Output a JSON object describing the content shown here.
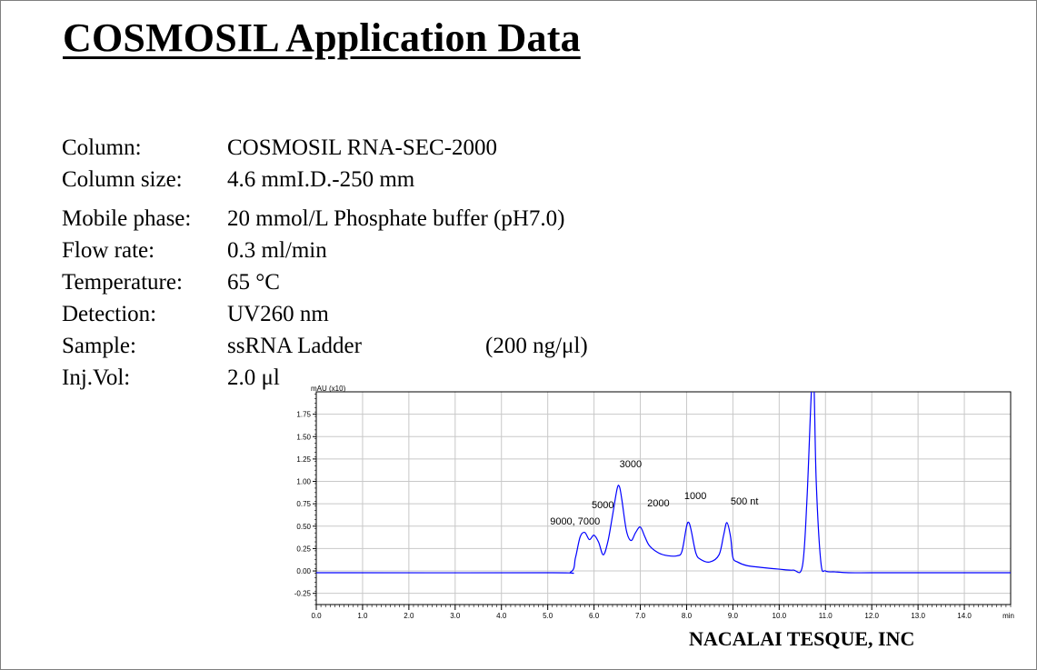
{
  "title": "COSMOSIL Application Data",
  "specs": [
    {
      "label": "Column:",
      "value": "COSMOSIL RNA-SEC-2000"
    },
    {
      "label": "Column size:",
      "value": "4.6 mmI.D.-250 mm"
    },
    {
      "label": "Mobile phase:",
      "value": "20 mmol/L Phosphate buffer (pH7.0)"
    },
    {
      "label": "Flow rate:",
      "value": "0.3 ml/min"
    },
    {
      "label": "Temperature:",
      "value": "65 °C"
    },
    {
      "label": "Detection:",
      "value": "UV260 nm"
    },
    {
      "label": "Sample:",
      "value": "ssRNA Ladder",
      "extra": "(200 ng/μl)"
    },
    {
      "label": "Inj.Vol:",
      "value": "2.0 μl"
    }
  ],
  "footer": "NACALAI TESQUE, INC",
  "chart_data": {
    "type": "line",
    "ylabel": "mAU (x10)",
    "xlabel": "min",
    "xlim": [
      0.0,
      15.0
    ],
    "ylim": [
      -0.375,
      2.0
    ],
    "x_ticks": [
      "0.0",
      "1.0",
      "2.0",
      "3.0",
      "4.0",
      "5.0",
      "6.0",
      "7.0",
      "8.0",
      "9.0",
      "10.0",
      "11.0",
      "12.0",
      "13.0",
      "14.0"
    ],
    "y_ticks": [
      "1.75",
      "1.50",
      "1.25",
      "1.00",
      "0.75",
      "0.50",
      "0.25",
      "0.00",
      "-0.25"
    ],
    "grid": true,
    "line_color": "#0000ff",
    "series": [
      {
        "x": [
          0.0,
          5.0,
          5.5,
          5.6,
          5.7,
          5.8,
          5.9,
          6.0,
          6.1,
          6.2,
          6.3,
          6.4,
          6.5,
          6.55,
          6.6,
          6.7,
          6.8,
          6.9,
          7.0,
          7.1,
          7.2,
          7.4,
          7.6,
          7.8,
          7.9,
          8.0,
          8.05,
          8.1,
          8.2,
          8.3,
          8.5,
          8.7,
          8.8,
          8.87,
          8.95,
          9.0,
          9.1,
          9.3,
          9.6,
          10.0,
          10.3,
          10.5,
          10.6,
          10.7,
          10.75,
          10.8,
          10.9,
          11.0,
          11.2,
          11.5,
          12.0,
          13.0,
          15.0
        ],
        "y": [
          -0.02,
          -0.02,
          -0.01,
          0.15,
          0.38,
          0.43,
          0.35,
          0.4,
          0.32,
          0.18,
          0.33,
          0.62,
          0.92,
          0.94,
          0.8,
          0.45,
          0.34,
          0.43,
          0.49,
          0.38,
          0.28,
          0.2,
          0.17,
          0.17,
          0.22,
          0.5,
          0.54,
          0.45,
          0.2,
          0.13,
          0.1,
          0.18,
          0.4,
          0.54,
          0.38,
          0.15,
          0.1,
          0.06,
          0.04,
          0.02,
          0.01,
          0.05,
          0.8,
          2.05,
          2.1,
          1.0,
          0.1,
          0.0,
          -0.01,
          -0.02,
          -0.02,
          -0.02,
          -0.02
        ]
      }
    ],
    "annotations": [
      {
        "text": "9000, 7000",
        "x": 5.05,
        "y": 0.52
      },
      {
        "text": "5000",
        "x": 5.95,
        "y": 0.7
      },
      {
        "text": "3000",
        "x": 6.55,
        "y": 1.16
      },
      {
        "text": "2000",
        "x": 7.15,
        "y": 0.72
      },
      {
        "text": "1000",
        "x": 7.95,
        "y": 0.8
      },
      {
        "text": "500 nt",
        "x": 8.95,
        "y": 0.74
      }
    ]
  }
}
